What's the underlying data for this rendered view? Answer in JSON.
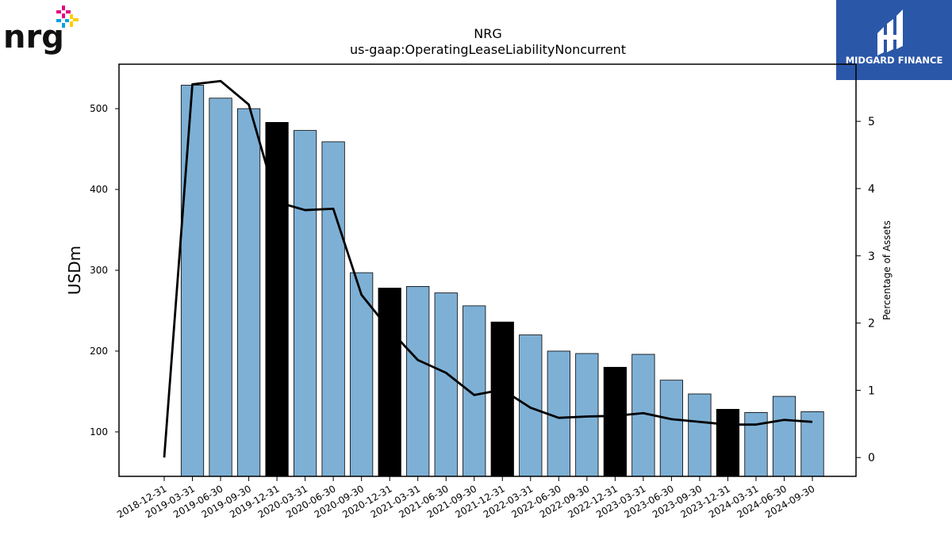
{
  "brand": {
    "company_logo_text": "nrg",
    "finance_logo_text": "MIDGARD FINANCE",
    "finance_logo_bg": "#2b57a8"
  },
  "chart_data": {
    "type": "bar",
    "title": "NRG",
    "subtitle": "us-gaap:OperatingLeaseLiabilityNoncurrent",
    "ylabel": "USDm",
    "y2label": "Percentage of Assets",
    "ylim": [
      45,
      555
    ],
    "y2lim": [
      -0.28,
      5.85
    ],
    "yticks": [
      100,
      200,
      300,
      400,
      500
    ],
    "y2ticks": [
      0,
      1,
      2,
      3,
      4,
      5
    ],
    "bar_color": "#7eb0d5",
    "highlight_color": "#000000",
    "categories": [
      "2018-12-31",
      "2019-03-31",
      "2019-06-30",
      "2019-09-30",
      "2019-12-31",
      "2020-03-31",
      "2020-06-30",
      "2020-09-30",
      "2020-12-31",
      "2021-03-31",
      "2021-06-30",
      "2021-09-30",
      "2021-12-31",
      "2022-03-31",
      "2022-06-30",
      "2022-09-30",
      "2022-12-31",
      "2023-03-31",
      "2023-06-30",
      "2023-09-30",
      "2023-12-31",
      "2024-03-31",
      "2024-06-30",
      "2024-09-30"
    ],
    "series": [
      {
        "kind": "bar",
        "values": [
          null,
          529,
          513,
          500,
          483,
          473,
          459,
          297,
          278,
          280,
          272,
          256,
          236,
          220,
          200,
          197,
          180,
          196,
          164,
          147,
          128,
          124,
          144,
          125
        ],
        "highlight": [
          false,
          false,
          false,
          false,
          true,
          false,
          false,
          false,
          true,
          false,
          false,
          false,
          true,
          false,
          false,
          false,
          true,
          false,
          false,
          false,
          true,
          false,
          false,
          false
        ]
      },
      {
        "kind": "line",
        "axis": "right",
        "color": "#000000",
        "values": [
          0,
          5.55,
          5.6,
          5.25,
          3.8,
          3.68,
          3.7,
          2.42,
          1.9,
          1.45,
          1.26,
          0.93,
          1.01,
          0.74,
          0.59,
          0.61,
          0.62,
          0.66,
          0.57,
          0.53,
          0.49,
          0.49,
          0.56,
          0.53
        ]
      }
    ]
  }
}
